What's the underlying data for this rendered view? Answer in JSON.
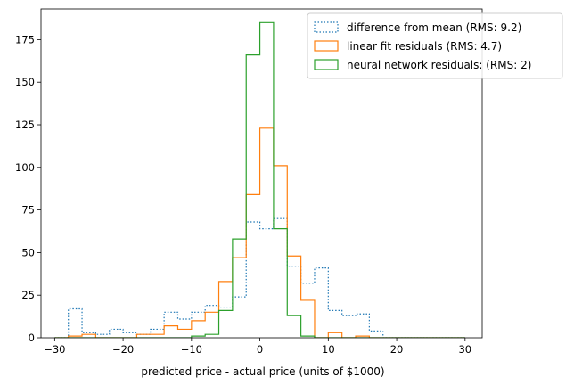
{
  "chart_data": {
    "type": "histogram",
    "title": "",
    "xlabel": "predicted price - actual price (units of $1000)",
    "ylabel": "",
    "xlim": [
      -32,
      32.5
    ],
    "ylim": [
      0,
      193
    ],
    "xticks": [
      -30,
      -20,
      -10,
      0,
      10,
      20,
      30
    ],
    "yticks": [
      0,
      25,
      50,
      75,
      100,
      125,
      150,
      175
    ],
    "bin_edges": [
      -30,
      -28,
      -26,
      -24,
      -22,
      -20,
      -18,
      -16,
      -14,
      -12,
      -10,
      -8,
      -6,
      -4,
      -2,
      0,
      2,
      4,
      6,
      8,
      10,
      12,
      14,
      16,
      18,
      20,
      22,
      24,
      26,
      28,
      30
    ],
    "legend_position": "upper-right",
    "series": [
      {
        "name": "difference from mean (RMS: 9.2)",
        "color": "#1f77b4",
        "linestyle": "dotted",
        "values": [
          0,
          17,
          3,
          2,
          5,
          3,
          2,
          5,
          15,
          11,
          15,
          19,
          18,
          24,
          68,
          64,
          70,
          42,
          32,
          41,
          16,
          13,
          14,
          4,
          0,
          0,
          0,
          0,
          0,
          0
        ]
      },
      {
        "name": "linear fit residuals (RMS: 4.7)",
        "color": "#ff7f0e",
        "linestyle": "solid",
        "values": [
          0,
          1,
          2,
          0,
          0,
          0,
          2,
          2,
          7,
          5,
          10,
          15,
          33,
          47,
          84,
          123,
          101,
          48,
          22,
          0,
          3,
          0,
          1,
          0,
          0,
          0,
          0,
          0,
          0,
          0
        ]
      },
      {
        "name": "neural network residuals: (RMS: 2)",
        "color": "#2ca02c",
        "linestyle": "solid",
        "values": [
          0,
          0,
          0,
          0,
          0,
          0,
          0,
          0,
          0,
          0,
          1,
          2,
          16,
          58,
          166,
          185,
          64,
          13,
          1,
          0,
          0,
          0,
          0,
          0,
          0,
          0,
          0,
          0,
          0,
          0
        ]
      }
    ]
  }
}
